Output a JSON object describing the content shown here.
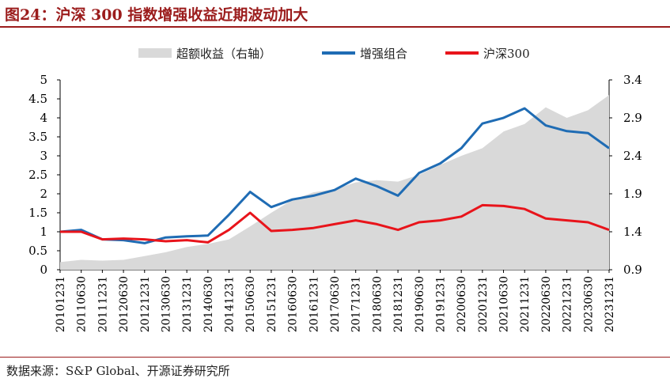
{
  "header": {
    "title": "图24：沪深 300 指数增强收益近期波动加大"
  },
  "footer": {
    "source": "数据来源：S&P Global、开源证券研究所"
  },
  "chart_data": {
    "type": "line",
    "x_labels": [
      "20101231",
      "20110630",
      "20111231",
      "20120630",
      "20121231",
      "20130630",
      "20131231",
      "20140630",
      "20141231",
      "20150630",
      "20151231",
      "20160630",
      "20161231",
      "20170630",
      "20171231",
      "20180630",
      "20181231",
      "20190630",
      "20191231",
      "20200630",
      "20201231",
      "20210630",
      "20211231",
      "20220630",
      "20221231",
      "20230630",
      "20231231"
    ],
    "left_axis": {
      "min": 0,
      "max": 5,
      "ticks": [
        "0",
        "0.5",
        "1",
        "1.5",
        "2",
        "2.5",
        "3",
        "3.5",
        "4",
        "4.5",
        "5"
      ]
    },
    "right_axis": {
      "min": 0.9,
      "max": 3.4,
      "ticks": [
        "0.9",
        "1.4",
        "1.9",
        "2.4",
        "2.9",
        "3.4"
      ]
    },
    "legend": {
      "position": "top",
      "items": [
        {
          "label": "超额收益（右轴）",
          "kind": "area",
          "color": "#d9d9d9"
        },
        {
          "label": "增强组合",
          "kind": "line",
          "color": "#1f6cb4"
        },
        {
          "label": "沪深300",
          "kind": "line",
          "color": "#e8141b"
        }
      ]
    },
    "series": [
      {
        "name": "超额收益（右轴）",
        "axis": "right",
        "type": "area",
        "color": "#d9d9d9",
        "values": [
          1.0,
          1.03,
          1.02,
          1.03,
          1.08,
          1.13,
          1.2,
          1.24,
          1.3,
          1.47,
          1.65,
          1.82,
          1.92,
          1.96,
          2.05,
          2.08,
          2.06,
          2.15,
          2.28,
          2.4,
          2.5,
          2.72,
          2.82,
          3.04,
          2.9,
          3.0,
          3.2
        ]
      },
      {
        "name": "增强组合",
        "axis": "left",
        "type": "line",
        "color": "#1f6cb4",
        "values": [
          1.0,
          1.05,
          0.8,
          0.78,
          0.7,
          0.85,
          0.88,
          0.9,
          1.45,
          2.05,
          1.65,
          1.85,
          1.95,
          2.1,
          2.4,
          2.2,
          1.95,
          2.55,
          2.8,
          3.2,
          3.85,
          4.0,
          4.25,
          3.8,
          3.65,
          3.6,
          3.2
        ]
      },
      {
        "name": "沪深300",
        "axis": "left",
        "type": "line",
        "color": "#e8141b",
        "values": [
          1.0,
          1.0,
          0.8,
          0.82,
          0.8,
          0.75,
          0.78,
          0.72,
          1.05,
          1.5,
          1.02,
          1.05,
          1.1,
          1.2,
          1.3,
          1.2,
          1.05,
          1.25,
          1.3,
          1.4,
          1.7,
          1.68,
          1.6,
          1.35,
          1.3,
          1.25,
          1.05
        ]
      }
    ]
  }
}
